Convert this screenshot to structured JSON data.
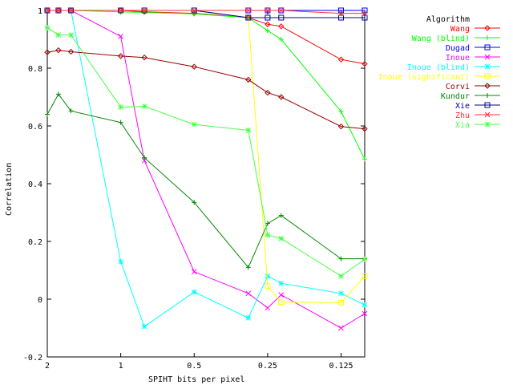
{
  "chart_data": {
    "type": "line",
    "xlabel": "SPIHT bits per pixel",
    "ylabel": "Correlation",
    "x_scale": "log2",
    "x_reversed": true,
    "xlim": [
      2.0,
      0.1
    ],
    "ylim": [
      -0.2,
      1
    ],
    "grid": false,
    "legend_position": "top-right",
    "legend_title": "Algorithm",
    "x_ticks": [
      2,
      1,
      0.5,
      0.25,
      0.125
    ],
    "x_tick_labels": [
      "2",
      "1",
      "0.5",
      "0.25",
      "0.125"
    ],
    "y_ticks": [
      -0.2,
      0,
      0.2,
      0.4,
      0.6,
      0.8,
      1
    ],
    "y_tick_labels": [
      "-0.2",
      "0",
      "0.2",
      "0.4",
      "0.6",
      "0.8",
      "1"
    ],
    "series": [
      {
        "name": "Wang",
        "color": "#ff0000",
        "marker": "diamond",
        "x": [
          2.0,
          1.8,
          1.6,
          1.0,
          0.8,
          0.5,
          0.3,
          0.25,
          0.22,
          0.125,
          0.1
        ],
        "y": [
          1.0,
          1.0,
          1.0,
          1.0,
          0.995,
          0.99,
          0.975,
          0.952,
          0.945,
          0.83,
          0.815
        ]
      },
      {
        "name": "Wang (blind)",
        "color": "#00ff00",
        "marker": "plus",
        "x": [
          2.0,
          1.8,
          1.6,
          1.0,
          0.8,
          0.5,
          0.3,
          0.25,
          0.22,
          0.125,
          0.1
        ],
        "y": [
          1.0,
          1.0,
          1.0,
          0.995,
          0.993,
          0.988,
          0.975,
          0.93,
          0.9,
          0.65,
          0.485
        ]
      },
      {
        "name": "Dugad",
        "color": "#0000ff",
        "marker": "square",
        "x": [
          2.0,
          1.8,
          1.6,
          1.0,
          0.8,
          0.5,
          0.3,
          0.25,
          0.22,
          0.125,
          0.1
        ],
        "y": [
          1.0,
          1.0,
          1.0,
          1.0,
          1.0,
          1.0,
          1.0,
          1.0,
          1.0,
          1.0,
          1.0
        ]
      },
      {
        "name": "Inoue",
        "color": "#ff00ff",
        "marker": "x",
        "x": [
          2.0,
          1.8,
          1.6,
          1.0,
          0.8,
          0.5,
          0.3,
          0.25,
          0.22,
          0.125,
          0.1
        ],
        "y": [
          1.0,
          1.0,
          1.0,
          0.91,
          0.48,
          0.095,
          0.02,
          -0.03,
          0.015,
          -0.1,
          -0.05
        ]
      },
      {
        "name": "Inoue (blind)",
        "color": "#00ffff",
        "marker": "star",
        "x": [
          2.0,
          1.8,
          1.6,
          1.0,
          0.8,
          0.5,
          0.3,
          0.25,
          0.22,
          0.125,
          0.1
        ],
        "y": [
          1.0,
          1.0,
          1.0,
          0.13,
          -0.095,
          0.025,
          -0.065,
          0.08,
          0.055,
          0.02,
          -0.02
        ]
      },
      {
        "name": "Inoue (significant)",
        "color": "#ffff00",
        "marker": "square",
        "x": [
          2.0,
          1.8,
          1.6,
          1.0,
          0.8,
          0.5,
          0.3,
          0.25,
          0.22,
          0.125,
          0.1
        ],
        "y": [
          1.0,
          1.0,
          1.0,
          1.0,
          1.0,
          1.0,
          0.975,
          0.045,
          -0.01,
          -0.012,
          0.08
        ]
      },
      {
        "name": "Corvi",
        "color": "#990000",
        "marker": "diamond",
        "x": [
          2.0,
          1.8,
          1.6,
          1.0,
          0.8,
          0.5,
          0.3,
          0.25,
          0.22,
          0.125,
          0.1
        ],
        "y": [
          0.855,
          0.862,
          0.857,
          0.842,
          0.837,
          0.805,
          0.76,
          0.715,
          0.7,
          0.598,
          0.59
        ]
      },
      {
        "name": "Kundur",
        "color": "#008800",
        "marker": "plus",
        "x": [
          2.0,
          1.8,
          1.6,
          1.0,
          0.8,
          0.5,
          0.3,
          0.25,
          0.22,
          0.125,
          0.1
        ],
        "y": [
          0.64,
          0.71,
          0.652,
          0.612,
          0.49,
          0.335,
          0.11,
          0.262,
          0.29,
          0.14,
          0.14
        ]
      },
      {
        "name": "Xie",
        "color": "#000099",
        "marker": "square",
        "x": [
          2.0,
          1.8,
          1.6,
          1.0,
          0.8,
          0.5,
          0.3,
          0.25,
          0.22,
          0.125,
          0.1
        ],
        "y": [
          1.0,
          1.0,
          1.0,
          1.0,
          1.0,
          1.0,
          0.975,
          0.975,
          0.975,
          0.975,
          0.975
        ]
      },
      {
        "name": "Zhu",
        "color": "#ff3030",
        "marker": "x",
        "x": [
          2.0,
          1.8,
          1.6,
          1.0,
          0.8,
          0.5,
          0.3,
          0.25,
          0.22,
          0.125,
          0.1
        ],
        "y": [
          1.0,
          1.0,
          1.0,
          1.0,
          1.0,
          1.0,
          1.0,
          1.0,
          1.0,
          0.99,
          0.99
        ]
      },
      {
        "name": "Xia",
        "color": "#44ff44",
        "marker": "star",
        "x": [
          2.0,
          1.8,
          1.6,
          1.0,
          0.8,
          0.5,
          0.3,
          0.25,
          0.22,
          0.125,
          0.1
        ],
        "y": [
          0.94,
          0.915,
          0.915,
          0.665,
          0.668,
          0.605,
          0.585,
          0.222,
          0.21,
          0.08,
          0.138
        ]
      }
    ]
  }
}
